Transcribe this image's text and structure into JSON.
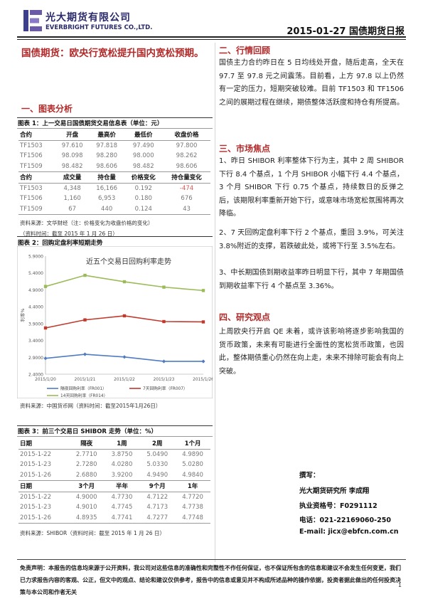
{
  "header": {
    "brand_cn": "光大期货有限公司",
    "brand_en": "EVERBRIGHT FUTURES CO.,LTD.",
    "date_title": "2015-01-27  国债期货日报"
  },
  "title": "国债期货：欧央行宽松提升国内宽松预期。",
  "sections": {
    "charts": "一、图表分析",
    "market": "二、行情回顾",
    "focus": "三、市场焦点",
    "view": "四、研究观点"
  },
  "table1": {
    "caption": "图表 1：上一交易日国债期货交易信息表（单位：元）",
    "header1": [
      "合约",
      "开盘",
      "最高价",
      "最低价",
      "收盘价格"
    ],
    "rows1": [
      [
        "TF1503",
        "97.610",
        "97.818",
        "97.490",
        "97.800"
      ],
      [
        "TF1506",
        "98.098",
        "98.280",
        "98.000",
        "98.262"
      ],
      [
        "TF1509",
        "98.482",
        "98.606",
        "98.482",
        "98.606"
      ]
    ],
    "header2": [
      "合约",
      "成交量",
      "持仓量",
      "价格变化",
      "持仓量变化"
    ],
    "rows2": [
      [
        "TF1503",
        "4,348",
        "16,166",
        "0.192",
        "-474"
      ],
      [
        "TF1506",
        "1,160",
        "6,953",
        "0.180",
        "676"
      ],
      [
        "TF1509",
        "67",
        "440",
        "0.124",
        "43"
      ]
    ],
    "note1": "资料来源：文华财经（注：价格变化为收盘价格的变化）",
    "note2": "（资料时间：截至 2015 年 1 月 26 日）"
  },
  "chart_caption": "图表 2：回购定盘利率短期走势",
  "chart_data": {
    "type": "line",
    "title": "近五个交易日回购利率走势",
    "ylabel": "利率%",
    "ylim": [
      2.4,
      5.9
    ],
    "yticks": [
      "2.4000",
      "2.9000",
      "3.4000",
      "3.9000",
      "4.4000",
      "4.9000",
      "5.4000",
      "5.9000"
    ],
    "categories": [
      "2015/1/20",
      "2015/1/21",
      "2015/1/22",
      "2015/1/23",
      "2015/1/26"
    ],
    "series": [
      {
        "name": "隔夜回购利率（FR001）",
        "color": "#4f7cc1",
        "values": [
          2.87,
          2.99,
          2.91,
          2.78,
          2.78
        ]
      },
      {
        "name": "7天回购利率（FR007）",
        "color": "#c0392b",
        "values": [
          3.77,
          4.01,
          4.13,
          3.96,
          3.95
        ]
      },
      {
        "name": "14天回购利率（FR014）",
        "color": "#9bbb59",
        "values": [
          5.0,
          5.33,
          5.14,
          4.98,
          4.88
        ]
      }
    ]
  },
  "chart_note": "资料来源：中国货币网（资料时间：截至2015年1月26日）",
  "table3": {
    "caption": "图表 3：前三个交易日 SHIBOR 走势（单位：%）",
    "header1": [
      "日期",
      "隔夜",
      "1周",
      "2周",
      "1个月"
    ],
    "rows1": [
      [
        "2015-1-22",
        "2.7710",
        "3.8750",
        "5.0490",
        "4.9890"
      ],
      [
        "2015-1-23",
        "2.7280",
        "4.0280",
        "5.0330",
        "5.0280"
      ],
      [
        "2015-1-26",
        "2.6880",
        "3.9200",
        "4.9490",
        "4.9840"
      ]
    ],
    "header2": [
      "日期",
      "3个月",
      "半年",
      "9个月",
      "1年"
    ],
    "rows2": [
      [
        "2015-1-22",
        "4.9000",
        "4.7730",
        "4.7122",
        "4.7720"
      ],
      [
        "2015-1-23",
        "4.9010",
        "4.7745",
        "4.7173",
        "4.7738"
      ],
      [
        "2015-1-26",
        "4.8935",
        "4.7741",
        "4.7277",
        "4.7748"
      ]
    ],
    "note": "资料来源：SHIBOR（资料时间：截至 2015 年 1 月 26 日）"
  },
  "market_review": "国债主力合约昨日在 5 日均线处开盘，随后走高，全天在 97.7 至 97.8 元之间震荡。目前看，上方 97.8 以上仍然有一定的压力，短期突破较难。目前 TF1503 和 TF1506 之间的展期过程在继续，期债整体活跃度和持仓有所提高。",
  "focus_items": [
    "1、昨日 SHIBOR 利率整体下行为主，其中 2 周 SHIBOR 下行 8.4 个基点，1 个月 SHIBOR 小幅下行 4.4 个基点，3 个月 SHIBOR 下行 0.75 个基点，持续数日的反弹之后，该期限利率重新开始下行，或意味市场宽松氛围将再次降临。",
    "2、7 天回购定盘利率下行 2 个基点，重回 3.9%，可关注 3.8%附近的支撑，若跌破此处，或将下行至 3.5%左右。",
    "3、中长期国债到期收益率昨日明显下行，其中 7 年期国债到期收益率下行 4 个基点至 3.36%。"
  ],
  "view_text": "上周欧央行开启 QE 未着，或许该影响将逐步影响我国的货币政策，未来有可能进行全面性的宽松货币政策，也因此，整体期债重心仍然在向上走，未来不排除可能会有向上突破。",
  "signature": {
    "label": "撰写：",
    "author": "光大期货研究所  李成翔",
    "license": "执业资格号：F0291112",
    "phone": "电话：021-22169060-250",
    "email": "E-mail: jicx@ebfcn.com.cn"
  },
  "disclaimer": "免责声明：本报告的信息均来源于公开资料，我公司对这些信息的准确性和完整性不作任何保证，也不保证所包含的信息和建议不会发生任何变更，我们已力求报告内容的客观、公正，但文中的观点、结论和建议仅供参考，报告中的信息或意见并不构成所述品种的操作依据，投资者据此做出的任何投资决策与本公司和作者无关",
  "page_number": "1"
}
